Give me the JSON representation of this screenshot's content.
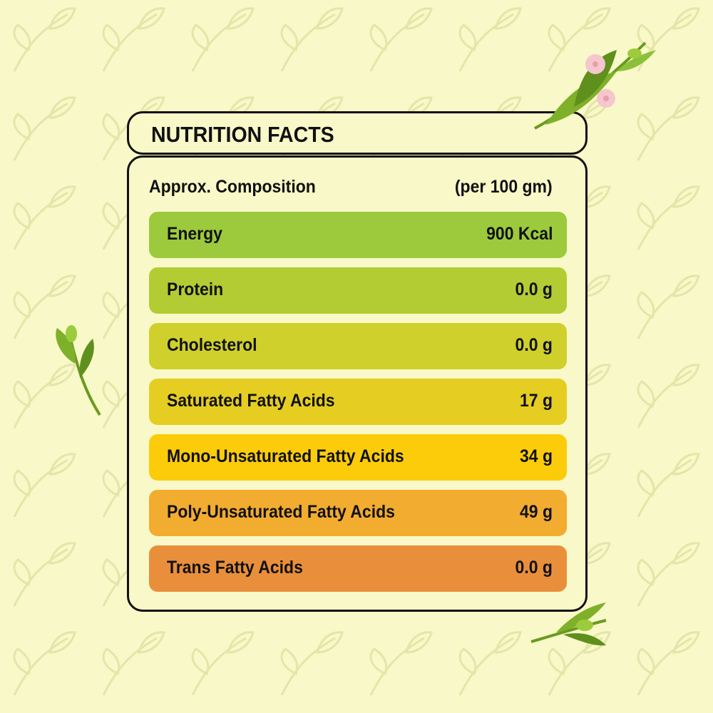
{
  "title": "NUTRITION FACTS",
  "composition_label": "Approx. Composition",
  "per_label": "(per 100 gm)",
  "rows": [
    {
      "name": "Energy",
      "value": "900 Kcal",
      "color": "#9cca3c"
    },
    {
      "name": "Protein",
      "value": "0.0 g",
      "color": "#b4cc33"
    },
    {
      "name": "Cholesterol",
      "value": "0.0 g",
      "color": "#cfd02b"
    },
    {
      "name": "Saturated Fatty Acids",
      "value": "17 g",
      "color": "#e5cd22"
    },
    {
      "name": "Mono-Unsaturated Fatty Acids",
      "value": "34 g",
      "color": "#fccc0b"
    },
    {
      "name": "Poly-Unsaturated Fatty Acids",
      "value": "49 g",
      "color": "#f2ac30"
    },
    {
      "name": "Trans Fatty Acids",
      "value": "0.0 g",
      "color": "#e98f3b"
    }
  ]
}
